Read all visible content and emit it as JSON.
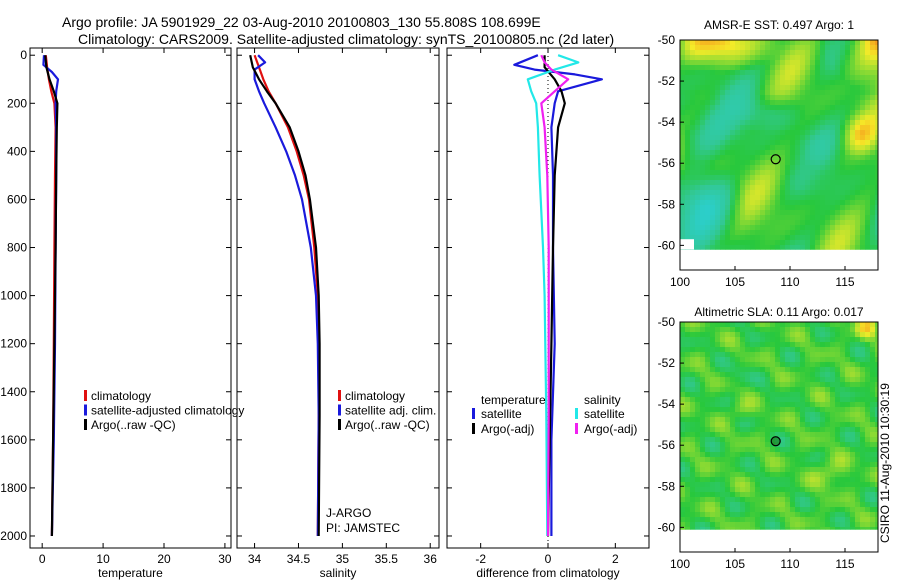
{
  "title": {
    "line1": "Argo profile: JA 5901929_22 03-Aug-2010 20100803_130 55.808S 108.699E",
    "line2": "Climatology: CARS2009. Satellite-adjusted climatology: synTS_20100805.nc (2d later)"
  },
  "credit": "CSIRO 11-Aug-2010 10:30:19",
  "colors": {
    "red": "#e01010",
    "blue": "#1a1adc",
    "black": "#000000",
    "cyan": "#22e8e8",
    "magenta": "#f020f0",
    "dot": "#404040"
  },
  "chart_data": [
    {
      "id": "temperature",
      "type": "line",
      "xlabel": "temperature",
      "xlim": [
        -2,
        31
      ],
      "ylim": [
        2050,
        -30
      ],
      "xticks": [
        0,
        10,
        20,
        30
      ],
      "xtick_labels": [
        "0",
        "10",
        "20",
        "30"
      ],
      "yticks": [
        0,
        200,
        400,
        600,
        800,
        1000,
        1200,
        1400,
        1600,
        1800,
        2000
      ],
      "ytick_labels": [
        "0",
        "200",
        "400",
        "600",
        "800",
        "1000",
        "1200",
        "1400",
        "1600",
        "1800",
        "2000"
      ],
      "legend": [
        {
          "label": "climatology",
          "color": "red"
        },
        {
          "label": "satellite-adjusted climatology",
          "color": "blue"
        },
        {
          "label": "Argo(..raw -QC)",
          "color": "black"
        }
      ],
      "series": [
        {
          "name": "climatology",
          "color": "red",
          "depth": [
            0,
            50,
            100,
            150,
            200,
            300,
            500,
            800,
            1200,
            1600,
            2000
          ],
          "values": [
            0.6,
            0.8,
            1.1,
            1.5,
            2.0,
            2.2,
            2.1,
            2.0,
            1.9,
            1.8,
            1.6
          ]
        },
        {
          "name": "satellite-adjusted climatology",
          "color": "blue",
          "depth": [
            0,
            40,
            70,
            100,
            150,
            200,
            300,
            500,
            800,
            1200,
            1600,
            2000
          ],
          "values": [
            0.3,
            0.2,
            1.6,
            2.6,
            2.3,
            2.2,
            2.3,
            2.3,
            2.2,
            2.1,
            1.9,
            1.6
          ]
        },
        {
          "name": "Argo(..raw -QC)",
          "color": "black",
          "depth": [
            0,
            50,
            100,
            150,
            200,
            300,
            500,
            800,
            1200,
            1600,
            2000
          ],
          "values": [
            0.5,
            0.7,
            1.2,
            1.9,
            2.5,
            2.4,
            2.3,
            2.2,
            2.0,
            1.8,
            1.6
          ]
        }
      ]
    },
    {
      "id": "salinity",
      "type": "line",
      "xlabel": "salinity",
      "xlim": [
        33.8,
        36.1
      ],
      "ylim": [
        2050,
        -30
      ],
      "xticks": [
        34,
        34.5,
        35,
        35.5,
        36
      ],
      "xtick_labels": [
        "34",
        "34.5",
        "35",
        "35.5",
        "36"
      ],
      "legend": [
        {
          "label": "climatology",
          "color": "red"
        },
        {
          "label": "satellite adj. clim.",
          "color": "blue"
        },
        {
          "label": "Argo(..raw -QC)",
          "color": "black"
        }
      ],
      "annotation": [
        "J-ARGO",
        "PI: JAMSTEC"
      ],
      "series": [
        {
          "name": "climatology",
          "color": "red",
          "depth": [
            0,
            50,
            100,
            150,
            200,
            300,
            400,
            500,
            600,
            800,
            1000,
            1200,
            1500,
            2000
          ],
          "values": [
            34.0,
            34.05,
            34.1,
            34.16,
            34.24,
            34.38,
            34.48,
            34.56,
            34.62,
            34.68,
            34.72,
            34.73,
            34.73,
            34.72
          ]
        },
        {
          "name": "satellite adj. clim.",
          "color": "blue",
          "depth": [
            0,
            30,
            60,
            100,
            150,
            200,
            300,
            400,
            500,
            600,
            800,
            1000,
            1200,
            1500,
            2000
          ],
          "values": [
            34.04,
            34.12,
            34.0,
            34.0,
            34.05,
            34.11,
            34.24,
            34.36,
            34.46,
            34.54,
            34.64,
            34.7,
            34.72,
            34.73,
            34.72
          ]
        },
        {
          "name": "Argo(..raw -QC)",
          "color": "black",
          "depth": [
            0,
            50,
            100,
            150,
            200,
            300,
            400,
            500,
            600,
            800,
            1000,
            1200,
            1500,
            2000
          ],
          "values": [
            33.95,
            33.98,
            34.05,
            34.14,
            34.24,
            34.4,
            34.5,
            34.58,
            34.63,
            34.7,
            34.73,
            34.74,
            34.74,
            34.73
          ]
        }
      ]
    },
    {
      "id": "difference",
      "type": "line",
      "xlabel": "difference from climatology",
      "xlim": [
        -3,
        3
      ],
      "ylim": [
        2050,
        -30
      ],
      "xticks": [
        -2,
        0,
        2
      ],
      "xtick_labels": [
        "-2",
        "0",
        "2"
      ],
      "legend_headers": [
        "temperature",
        "salinity"
      ],
      "legend": [
        {
          "label": "satellite",
          "color": "blue"
        },
        {
          "label": "Argo(-adj)",
          "color": "black"
        },
        {
          "label": "satellite",
          "color": "cyan"
        },
        {
          "label": "Argo(-adj)",
          "color": "magenta"
        }
      ],
      "series": [
        {
          "name": "temperature satellite",
          "color": "blue",
          "depth": [
            0,
            40,
            60,
            80,
            100,
            150,
            200,
            300,
            500,
            800,
            1200,
            1600,
            2000
          ],
          "values": [
            -0.3,
            -1.0,
            -0.4,
            0.8,
            1.6,
            0.3,
            0.2,
            0.1,
            0.15,
            0.15,
            0.2,
            0.1,
            0.1
          ]
        },
        {
          "name": "temperature Argo(-adj)",
          "color": "black",
          "depth": [
            0,
            50,
            100,
            150,
            200,
            300,
            400,
            500,
            800,
            1200,
            1600,
            2000
          ],
          "values": [
            -0.1,
            -0.1,
            0.2,
            0.4,
            0.5,
            0.3,
            0.25,
            0.2,
            0.15,
            0.1,
            0.05,
            0.0
          ]
        },
        {
          "name": "salinity satellite",
          "color": "cyan",
          "depth": [
            0,
            30,
            60,
            100,
            150,
            200,
            300,
            500,
            800,
            1000,
            1500,
            2000
          ],
          "values": [
            0.3,
            0.9,
            0.2,
            -0.6,
            -0.5,
            -0.35,
            -0.3,
            -0.25,
            -0.15,
            -0.1,
            -0.05,
            -0.02
          ]
        },
        {
          "name": "salinity Argo(-adj)",
          "color": "magenta",
          "depth": [
            0,
            30,
            60,
            100,
            150,
            200,
            300,
            500,
            800,
            1000,
            1500,
            2000
          ],
          "values": [
            -0.2,
            -0.1,
            0.1,
            0.6,
            0.2,
            -0.2,
            -0.1,
            -0.02,
            0.02,
            0.02,
            0.02,
            0.0
          ]
        }
      ]
    },
    {
      "id": "sst-map",
      "type": "heatmap",
      "title": "AMSR-E SST: 0.497 Argo: 1",
      "xlim": [
        100,
        118
      ],
      "ylim": [
        -61.2,
        -50
      ],
      "xticks": [
        100,
        105,
        110,
        115
      ],
      "xtick_labels": [
        "100",
        "105",
        "110",
        "115"
      ],
      "yticks": [
        -50,
        -52,
        -54,
        -56,
        -58,
        -60
      ],
      "ytick_labels": [
        "-50",
        "-52",
        "-54",
        "-56",
        "-58",
        "-60"
      ],
      "data_extent": {
        "lon": [
          100,
          118
        ],
        "lat": [
          -60.2,
          -50
        ]
      },
      "marker": {
        "lon": 108.699,
        "lat": -55.808
      },
      "style": "warm north-east corner, cyan patches west and south-west, green elsewhere"
    },
    {
      "id": "sla-map",
      "type": "heatmap",
      "title": "Altimetric SLA: 0.11 Argo: 0.017",
      "xlim": [
        100,
        118
      ],
      "ylim": [
        -61.2,
        -50
      ],
      "xticks": [
        100,
        105,
        110,
        115
      ],
      "xtick_labels": [
        "100",
        "105",
        "110",
        "115"
      ],
      "yticks": [
        -50,
        -52,
        -54,
        -56,
        -58,
        -60
      ],
      "ytick_labels": [
        "-50",
        "-52",
        "-54",
        "-56",
        "-58",
        "-60"
      ],
      "data_extent": {
        "lon": [
          100,
          118
        ],
        "lat": [
          -60.1,
          -50
        ]
      },
      "marker": {
        "lon": 108.699,
        "lat": -55.808
      },
      "style": "green background with yellow and light-green eddies"
    }
  ]
}
